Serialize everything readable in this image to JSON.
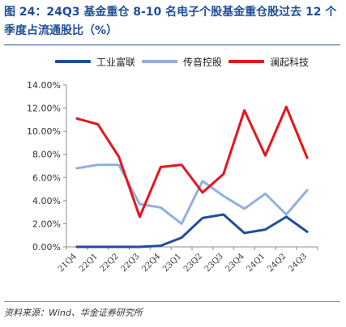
{
  "title": "图 24：24Q3 基金重仓 8-10 名电子个股基金重仓股过去 12 个季度占流通股比（%）",
  "source": "资料来源：Wind、华金证券研究所",
  "chart_data": {
    "type": "line",
    "categories": [
      "21Q4",
      "22Q1",
      "22Q2",
      "22Q3",
      "22Q4",
      "23Q1",
      "23Q2",
      "23Q3",
      "23Q4",
      "24Q1",
      "24Q2",
      "24Q3"
    ],
    "y_ticks": [
      "0.00%",
      "2.00%",
      "4.00%",
      "6.00%",
      "8.00%",
      "10.00%",
      "12.00%",
      "14.00%"
    ],
    "ylim": [
      0,
      14
    ],
    "grid": false,
    "legend_position": "top",
    "series": [
      {
        "name": "工业富联",
        "color": "#1f4e9c",
        "values": [
          0.0,
          0.0,
          0.0,
          0.0,
          0.1,
          0.8,
          2.5,
          2.8,
          1.2,
          1.5,
          2.6,
          1.3
        ]
      },
      {
        "name": "传音控股",
        "color": "#8fb0e2",
        "values": [
          6.8,
          7.1,
          7.1,
          3.7,
          3.4,
          2.0,
          5.7,
          4.4,
          3.3,
          4.6,
          2.8,
          4.9
        ]
      },
      {
        "name": "澜起科技",
        "color": "#e8141b",
        "values": [
          11.1,
          10.6,
          7.8,
          2.6,
          6.9,
          7.1,
          4.7,
          6.3,
          11.8,
          7.9,
          12.1,
          7.7
        ]
      }
    ]
  }
}
